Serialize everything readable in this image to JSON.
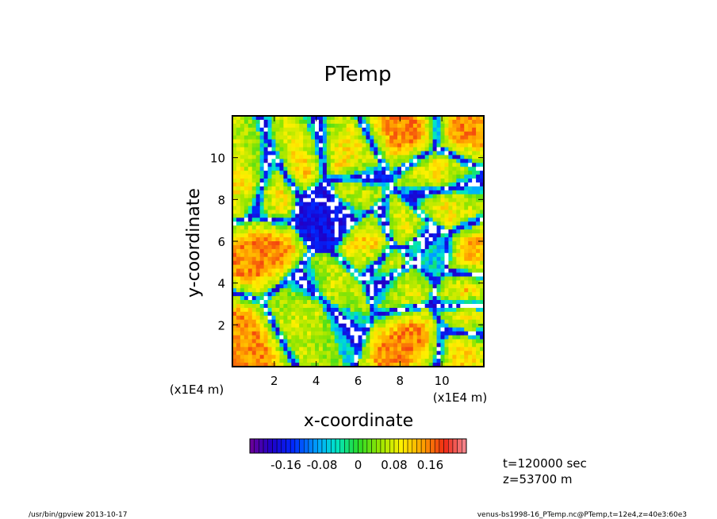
{
  "chart_data": {
    "type": "heatmap",
    "title": "PTemp",
    "xlabel": "x-coordinate",
    "ylabel": "y-coordinate",
    "x_ticks": [
      "2",
      "4",
      "6",
      "8",
      "10"
    ],
    "y_ticks": [
      "2",
      "4",
      "6",
      "8",
      "10"
    ],
    "x_tick_values": [
      2,
      4,
      6,
      8,
      10
    ],
    "y_tick_values": [
      2,
      4,
      6,
      8,
      10
    ],
    "xlim": [
      0,
      12
    ],
    "ylim": [
      0,
      12
    ],
    "x_scale_label": "(x1E4 m)",
    "y_scale_label": "(x1E4 m)",
    "colorbar": {
      "range": [
        -0.24,
        0.24
      ],
      "levels": 48,
      "tick_labels": [
        "-0.16",
        "-0.08",
        "0",
        "0.08",
        "0.16"
      ],
      "tick_values": [
        -0.16,
        -0.08,
        0,
        0.08,
        0.16
      ]
    },
    "annotations": [
      "t=120000 sec",
      "z=53700 m"
    ]
  },
  "footer": {
    "left": "/usr/bin/gpview   2013-10-17",
    "right": "venus-bs1998-16_PTemp.nc@PTemp,t=12e4,z=40e3:60e3"
  }
}
